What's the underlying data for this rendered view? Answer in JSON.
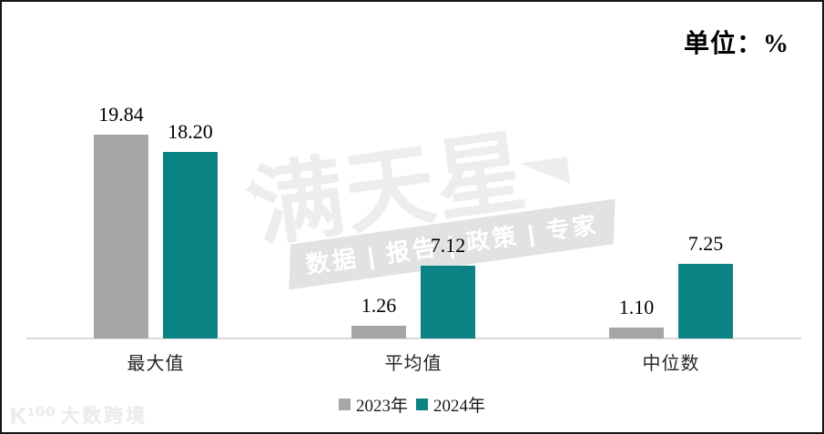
{
  "unit_label": "单位：%",
  "chart_data": {
    "type": "bar",
    "categories": [
      "最大值",
      "平均值",
      "中位数"
    ],
    "series": [
      {
        "name": "2023年",
        "color": "#A6A6A6",
        "values": [
          19.84,
          1.26,
          1.1
        ]
      },
      {
        "name": "2024年",
        "color": "#0B8384",
        "values": [
          18.2,
          7.12,
          7.25
        ]
      }
    ],
    "value_label_decimals": 2,
    "ylim": [
      0,
      21
    ],
    "grid": false,
    "legend_position": "bottom",
    "axis_color": "#D9D9D9"
  },
  "watermark": {
    "star_icon": "✦",
    "title": "满天星",
    "subtitle": "数据 | 报告 | 政策 | 专家",
    "title_color": "#EDEDED",
    "banner_color": "#E2E2E2"
  },
  "brand": {
    "icon": "K¹⁰⁰",
    "name": "大数跨境"
  }
}
